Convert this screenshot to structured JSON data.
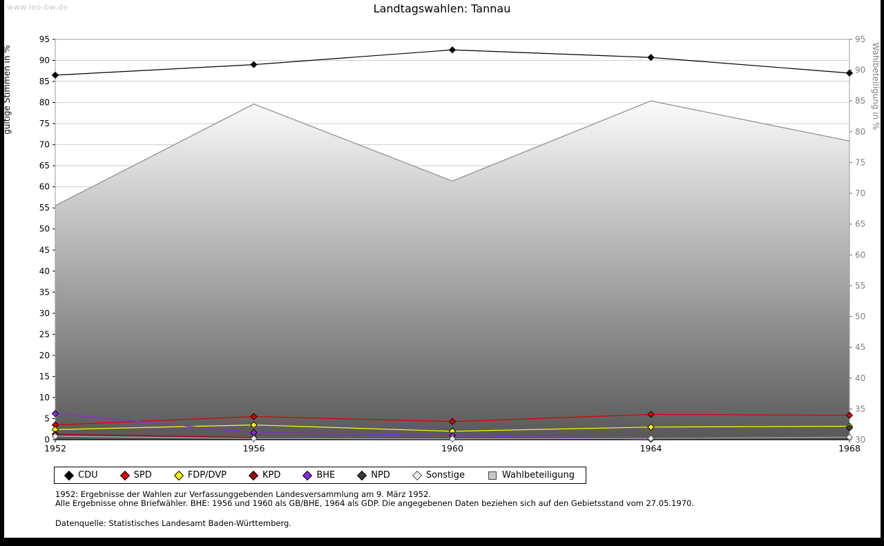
{
  "watermark": "www.leo-bw.de",
  "title": "Landtagswahlen: Tannau",
  "chart_data": {
    "type": "line",
    "x": [
      1952,
      1956,
      1960,
      1964,
      1968
    ],
    "left_axis": {
      "label": "gültige Stimmen in %",
      "min": 0,
      "max": 95,
      "tick_step": 5
    },
    "right_axis": {
      "label": "Wahlbeteiligung in %",
      "min": 30,
      "max": 95,
      "tick_step": 5
    },
    "series": [
      {
        "name": "CDU",
        "color": "#000000",
        "axis": "left",
        "values": [
          86.5,
          89.0,
          92.5,
          90.7,
          87.0
        ]
      },
      {
        "name": "SPD",
        "color": "#dd0000",
        "axis": "left",
        "values": [
          3.5,
          5.5,
          4.3,
          6.0,
          5.8
        ]
      },
      {
        "name": "FDP/DVP",
        "color": "#ffff00",
        "axis": "left",
        "values": [
          2.4,
          3.5,
          2.0,
          3.0,
          3.2
        ]
      },
      {
        "name": "KPD",
        "color": "#a00000",
        "axis": "left",
        "values": [
          1.3,
          0.5,
          null,
          null,
          null
        ]
      },
      {
        "name": "BHE",
        "color": "#8a2be2",
        "axis": "left",
        "values": [
          6.2,
          1.7,
          1.0,
          0.1,
          null
        ]
      },
      {
        "name": "NPD",
        "color": "#3c3c3c",
        "axis": "left",
        "values": [
          null,
          null,
          null,
          null,
          2.8
        ]
      },
      {
        "name": "Sonstige",
        "color": "#ececec",
        "stroke": "#555555",
        "line": "#aaaaaa",
        "axis": "left",
        "values": [
          0.8,
          0.3,
          0.2,
          0.3,
          0.6
        ]
      }
    ],
    "area_series": {
      "name": "Wahlbeteiligung",
      "axis": "right",
      "values": [
        68.0,
        84.5,
        72.0,
        85.0,
        78.5
      ],
      "fill_top": "#fbfbfb",
      "fill_bottom": "#585858",
      "stroke": "#999999",
      "legend_fill": "#c8c8c8",
      "legend_stroke": "#444444"
    },
    "grid": true,
    "legend_position": "bottom"
  },
  "footnotes": [
    "1952: Ergebnisse der Wahlen zur Verfassunggebenden Landesversammlung am 9. März 1952.",
    "Alle Ergebnisse ohne Briefwähler. BHE: 1956 und 1960 als GB/BHE, 1964 als GDP. Die angegebenen Daten beziehen sich auf den Gebietsstand vom 27.05.1970.",
    "Datenquelle: Statistisches Landesamt Baden-Württemberg."
  ]
}
